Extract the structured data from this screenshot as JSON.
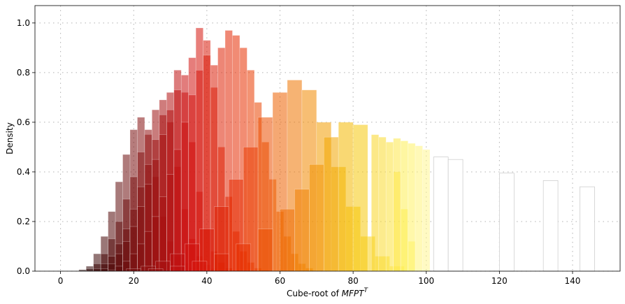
{
  "chart_data": {
    "type": "bar",
    "title": "",
    "xlabel": "Cube-root of ",
    "xlabel_math": "MFPT",
    "xlabel_sup": "T",
    "ylabel": "Density",
    "xlim": [
      -7,
      153
    ],
    "ylim": [
      0,
      1.07
    ],
    "xticks": [
      0,
      20,
      40,
      60,
      80,
      100,
      120,
      140
    ],
    "yticks": [
      0.0,
      0.2,
      0.4,
      0.6,
      0.8,
      1.0
    ],
    "xtick_labels": [
      "0",
      "20",
      "40",
      "60",
      "80",
      "100",
      "120",
      "140"
    ],
    "ytick_labels": [
      "0.0",
      "0.2",
      "0.4",
      "0.6",
      "0.8",
      "1.0"
    ],
    "grid": true,
    "grid_style": "dotted",
    "colormap": "hot",
    "colormap_stops": [
      "#1a0000",
      "#7a1010",
      "#d01010",
      "#e83000",
      "#f07a00",
      "#f5c200",
      "#fff15a",
      "#ffffff"
    ],
    "series": [
      {
        "values": [
          [
            2,
            0.0
          ],
          [
            4,
            0.0
          ],
          [
            6,
            0.006
          ],
          [
            8,
            0.02
          ],
          [
            10,
            0.07
          ],
          [
            12,
            0.14
          ],
          [
            14,
            0.24
          ],
          [
            16,
            0.36
          ],
          [
            18,
            0.47
          ],
          [
            20,
            0.57
          ],
          [
            22,
            0.62
          ],
          [
            24,
            0.55
          ],
          [
            26,
            0.38
          ],
          [
            28,
            0.22
          ],
          [
            30,
            0.12
          ],
          [
            32,
            0.06
          ],
          [
            34,
            0.03
          ],
          [
            36,
            0.015
          ],
          [
            38,
            0.006
          ]
        ]
      },
      {
        "values": [
          [
            6,
            0.0
          ],
          [
            8,
            0.01
          ],
          [
            10,
            0.03
          ],
          [
            12,
            0.07
          ],
          [
            14,
            0.13
          ],
          [
            16,
            0.2
          ],
          [
            18,
            0.29
          ],
          [
            20,
            0.38
          ],
          [
            22,
            0.48
          ],
          [
            24,
            0.57
          ],
          [
            26,
            0.65
          ],
          [
            28,
            0.69
          ],
          [
            30,
            0.6
          ],
          [
            32,
            0.42
          ],
          [
            34,
            0.25
          ],
          [
            36,
            0.13
          ],
          [
            38,
            0.06
          ],
          [
            40,
            0.025
          ],
          [
            42,
            0.01
          ],
          [
            44,
            0.003
          ]
        ]
      },
      {
        "values": [
          [
            8,
            0.0
          ],
          [
            10,
            0.01
          ],
          [
            12,
            0.03
          ],
          [
            14,
            0.06
          ],
          [
            16,
            0.11
          ],
          [
            18,
            0.17
          ],
          [
            20,
            0.25
          ],
          [
            22,
            0.34
          ],
          [
            24,
            0.43
          ],
          [
            26,
            0.53
          ],
          [
            28,
            0.63
          ],
          [
            30,
            0.72
          ],
          [
            32,
            0.81
          ],
          [
            34,
            0.72
          ],
          [
            36,
            0.52
          ],
          [
            38,
            0.32
          ],
          [
            40,
            0.17
          ],
          [
            42,
            0.08
          ],
          [
            44,
            0.035
          ],
          [
            46,
            0.012
          ],
          [
            48,
            0.004
          ]
        ]
      },
      {
        "values": [
          [
            10,
            0.0
          ],
          [
            12,
            0.01
          ],
          [
            14,
            0.03
          ],
          [
            16,
            0.07
          ],
          [
            18,
            0.12
          ],
          [
            20,
            0.18
          ],
          [
            22,
            0.26
          ],
          [
            24,
            0.35
          ],
          [
            26,
            0.45
          ],
          [
            28,
            0.55
          ],
          [
            30,
            0.65
          ],
          [
            32,
            0.73
          ],
          [
            34,
            0.79
          ],
          [
            36,
            0.86
          ],
          [
            38,
            0.98
          ],
          [
            40,
            0.93
          ],
          [
            42,
            0.74
          ],
          [
            44,
            0.5
          ],
          [
            46,
            0.3
          ],
          [
            48,
            0.16
          ],
          [
            50,
            0.08
          ],
          [
            52,
            0.035
          ],
          [
            54,
            0.012
          ],
          [
            56,
            0.004
          ]
        ]
      },
      {
        "values": [
          [
            12,
            0.0
          ],
          [
            14,
            0.005
          ],
          [
            16,
            0.02
          ],
          [
            18,
            0.04
          ],
          [
            20,
            0.07
          ],
          [
            22,
            0.11
          ],
          [
            24,
            0.16
          ],
          [
            26,
            0.22
          ],
          [
            28,
            0.3
          ],
          [
            30,
            0.39
          ],
          [
            32,
            0.49
          ],
          [
            34,
            0.6
          ],
          [
            36,
            0.71
          ],
          [
            38,
            0.81
          ],
          [
            40,
            0.87
          ],
          [
            42,
            0.83
          ],
          [
            44,
            0.9
          ],
          [
            46,
            0.97
          ],
          [
            48,
            0.95
          ],
          [
            50,
            0.9
          ],
          [
            52,
            0.81
          ],
          [
            54,
            0.68
          ],
          [
            56,
            0.52
          ],
          [
            58,
            0.37
          ],
          [
            60,
            0.24
          ],
          [
            62,
            0.14
          ],
          [
            64,
            0.07
          ],
          [
            66,
            0.03
          ],
          [
            68,
            0.012
          ]
        ]
      },
      {
        "values": [
          [
            16,
            0.0
          ],
          [
            20,
            0.01
          ],
          [
            24,
            0.02
          ],
          [
            28,
            0.04
          ],
          [
            32,
            0.07
          ],
          [
            36,
            0.11
          ],
          [
            40,
            0.17
          ],
          [
            44,
            0.26
          ],
          [
            48,
            0.37
          ],
          [
            52,
            0.5
          ],
          [
            56,
            0.62
          ],
          [
            60,
            0.72
          ],
          [
            64,
            0.77
          ],
          [
            68,
            0.73
          ],
          [
            72,
            0.6
          ],
          [
            76,
            0.42
          ],
          [
            80,
            0.26
          ],
          [
            84,
            0.14
          ],
          [
            88,
            0.06
          ],
          [
            92,
            0.02
          ]
        ]
      },
      {
        "values": [
          [
            20,
            0.0
          ],
          [
            26,
            0.01
          ],
          [
            32,
            0.02
          ],
          [
            38,
            0.04
          ],
          [
            44,
            0.07
          ],
          [
            50,
            0.11
          ],
          [
            56,
            0.17
          ],
          [
            62,
            0.25
          ],
          [
            66,
            0.33
          ],
          [
            70,
            0.43
          ],
          [
            74,
            0.54
          ],
          [
            78,
            0.6
          ],
          [
            82,
            0.59
          ],
          [
            86,
            0.55
          ],
          [
            88,
            0.54
          ],
          [
            90,
            0.52
          ],
          [
            92,
            0.4
          ],
          [
            94,
            0.25
          ],
          [
            96,
            0.12
          ]
        ]
      },
      {
        "values": [
          [
            92,
            0.535
          ],
          [
            94,
            0.525
          ],
          [
            96,
            0.515
          ],
          [
            98,
            0.505
          ],
          [
            100,
            0.49
          ]
        ]
      },
      {
        "values": [
          [
            104,
            0.46
          ],
          [
            108,
            0.45
          ],
          [
            122,
            0.395
          ],
          [
            134,
            0.365
          ],
          [
            144,
            0.34
          ]
        ]
      }
    ]
  }
}
